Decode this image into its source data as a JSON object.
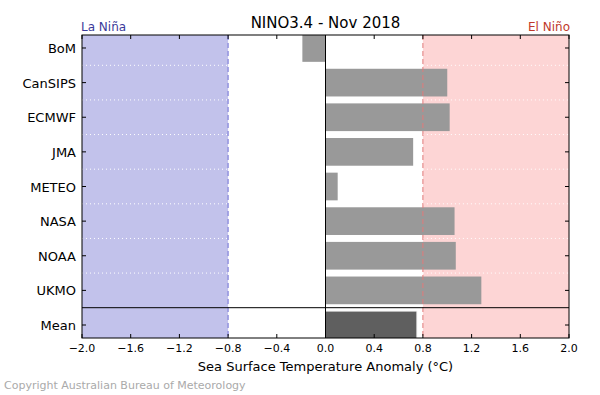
{
  "chart_data": {
    "type": "bar",
    "orientation": "horizontal",
    "title": "NINO3.4 - Nov 2018",
    "x_label": "Sea Surface Temperature Anomaly (°C)",
    "source": "Copyright Australian Bureau of Meteorology",
    "categories": [
      "BoM",
      "CanSIPS",
      "ECMWF",
      "JMA",
      "METEO",
      "NASA",
      "NOAA",
      "UKMO",
      "Mean"
    ],
    "values": [
      -0.19,
      1.0,
      1.02,
      0.72,
      0.1,
      1.06,
      1.07,
      1.28,
      0.75
    ],
    "colors": [
      "#999999",
      "#999999",
      "#999999",
      "#999999",
      "#999999",
      "#999999",
      "#999999",
      "#999999",
      "#5f5f5f"
    ],
    "xlim": [
      -2,
      2
    ],
    "xticks": [
      {
        "value": -2,
        "label": "−2.0"
      },
      {
        "value": -1.6,
        "label": "−1.6"
      },
      {
        "value": -1.2,
        "label": "−1.2"
      },
      {
        "value": -0.8,
        "label": "−0.8"
      },
      {
        "value": -0.4,
        "label": "−0.4"
      },
      {
        "value": 0,
        "label": "0.0"
      },
      0.4,
      0.8,
      1.2,
      1.6,
      {
        "value": 2,
        "label": "2.0"
      }
    ],
    "regions": [
      {
        "label": "La Niña",
        "from": -2,
        "to": -0.8,
        "color": "#c2c2eb"
      },
      {
        "label": "El Niño",
        "from": 0.8,
        "to": 2,
        "color": "#fdd5d5"
      }
    ],
    "grid": false
  }
}
